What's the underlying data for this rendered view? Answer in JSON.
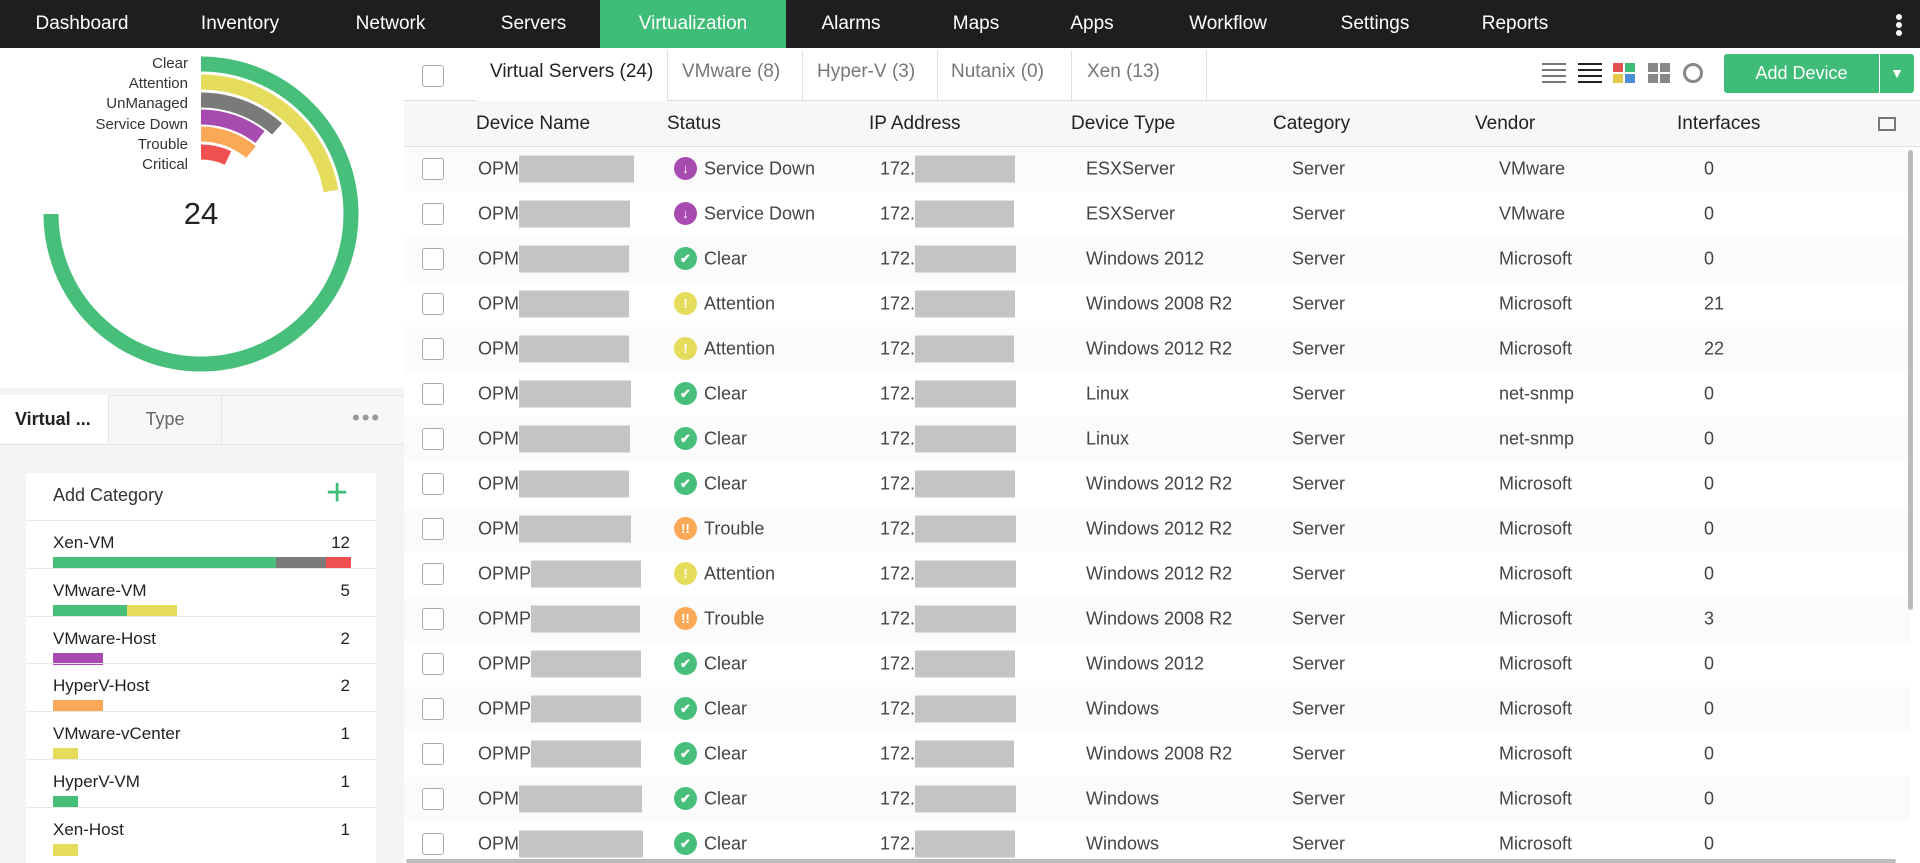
{
  "nav": {
    "items": [
      "Dashboard",
      "Inventory",
      "Network",
      "Servers",
      "Virtualization",
      "Alarms",
      "Maps",
      "Apps",
      "Workflow",
      "Settings",
      "Reports"
    ],
    "active": 4
  },
  "summary": {
    "legend": [
      "Clear",
      "Attention",
      "UnManaged",
      "Service Down",
      "Trouble",
      "Critical"
    ],
    "total": "24"
  },
  "side_tabs": [
    "Virtual ...",
    "Type"
  ],
  "categories": {
    "title": "Add Category",
    "items": [
      {
        "name": "Xen-VM",
        "count": "12",
        "segments": [
          {
            "status": "Clear",
            "count": 9
          },
          {
            "status": "UnManaged",
            "count": 2
          },
          {
            "status": "Critical",
            "count": 1
          }
        ]
      },
      {
        "name": "VMware-VM",
        "count": "5",
        "segments": [
          {
            "status": "Clear",
            "count": 3
          },
          {
            "status": "Attention",
            "count": 2
          }
        ]
      },
      {
        "name": "VMware-Host",
        "count": "2",
        "segments": [
          {
            "status": "Service Down",
            "count": 2
          }
        ]
      },
      {
        "name": "HyperV-Host",
        "count": "2",
        "segments": [
          {
            "status": "Trouble",
            "count": 2
          }
        ]
      },
      {
        "name": "VMware-vCenter",
        "count": "1",
        "segments": [
          {
            "status": "Attention",
            "count": 1
          }
        ]
      },
      {
        "name": "HyperV-VM",
        "count": "1",
        "segments": [
          {
            "status": "Clear",
            "count": 1
          }
        ]
      },
      {
        "name": "Xen-Host",
        "count": "1",
        "segments": [
          {
            "status": "Attention",
            "count": 1
          }
        ]
      }
    ]
  },
  "tabs": [
    "Virtual Servers (24)",
    "VMware (8)",
    "Hyper-V (3)",
    "Nutanix (0)",
    "Xen (13)"
  ],
  "add_device": "Add Device",
  "table": {
    "columns": [
      "Device Name",
      "Status",
      "IP Address",
      "Device Type",
      "Category",
      "Vendor",
      "Interfaces"
    ],
    "rows": [
      [
        "OPM",
        "Service Down",
        "172.",
        "ESXServer",
        "Server",
        "VMware",
        "0"
      ],
      [
        "OPM",
        "Service Down",
        "172.",
        "ESXServer",
        "Server",
        "VMware",
        "0"
      ],
      [
        "OPM",
        "Clear",
        "172.",
        "Windows 2012",
        "Server",
        "Microsoft",
        "0"
      ],
      [
        "OPM",
        "Attention",
        "172.",
        "Windows 2008 R2",
        "Server",
        "Microsoft",
        "21"
      ],
      [
        "OPM",
        "Attention",
        "172.",
        "Windows 2012 R2",
        "Server",
        "Microsoft",
        "22"
      ],
      [
        "OPM",
        "Clear",
        "172.",
        "Linux",
        "Server",
        "net-snmp",
        "0"
      ],
      [
        "OPM",
        "Clear",
        "172.",
        "Linux",
        "Server",
        "net-snmp",
        "0"
      ],
      [
        "OPM",
        "Clear",
        "172.",
        "Windows 2012 R2",
        "Server",
        "Microsoft",
        "0"
      ],
      [
        "OPM",
        "Trouble",
        "172.",
        "Windows 2012 R2",
        "Server",
        "Microsoft",
        "0"
      ],
      [
        "OPMP",
        "Attention",
        "172.",
        "Windows 2012 R2",
        "Server",
        "Microsoft",
        "0"
      ],
      [
        "OPMP",
        "Trouble",
        "172.",
        "Windows 2008 R2",
        "Server",
        "Microsoft",
        "3"
      ],
      [
        "OPMP",
        "Clear",
        "172.",
        "Windows 2012",
        "Server",
        "Microsoft",
        "0"
      ],
      [
        "OPMP",
        "Clear",
        "172.",
        "Windows",
        "Server",
        "Microsoft",
        "0"
      ],
      [
        "OPMP",
        "Clear",
        "172.",
        "Windows 2008 R2",
        "Server",
        "Microsoft",
        "0"
      ],
      [
        "OPM",
        "Clear",
        "172.",
        "Windows",
        "Server",
        "Microsoft",
        "0"
      ],
      [
        "OPM",
        "Clear",
        "172.",
        "Windows",
        "Server",
        "Microsoft",
        "0"
      ]
    ]
  }
}
